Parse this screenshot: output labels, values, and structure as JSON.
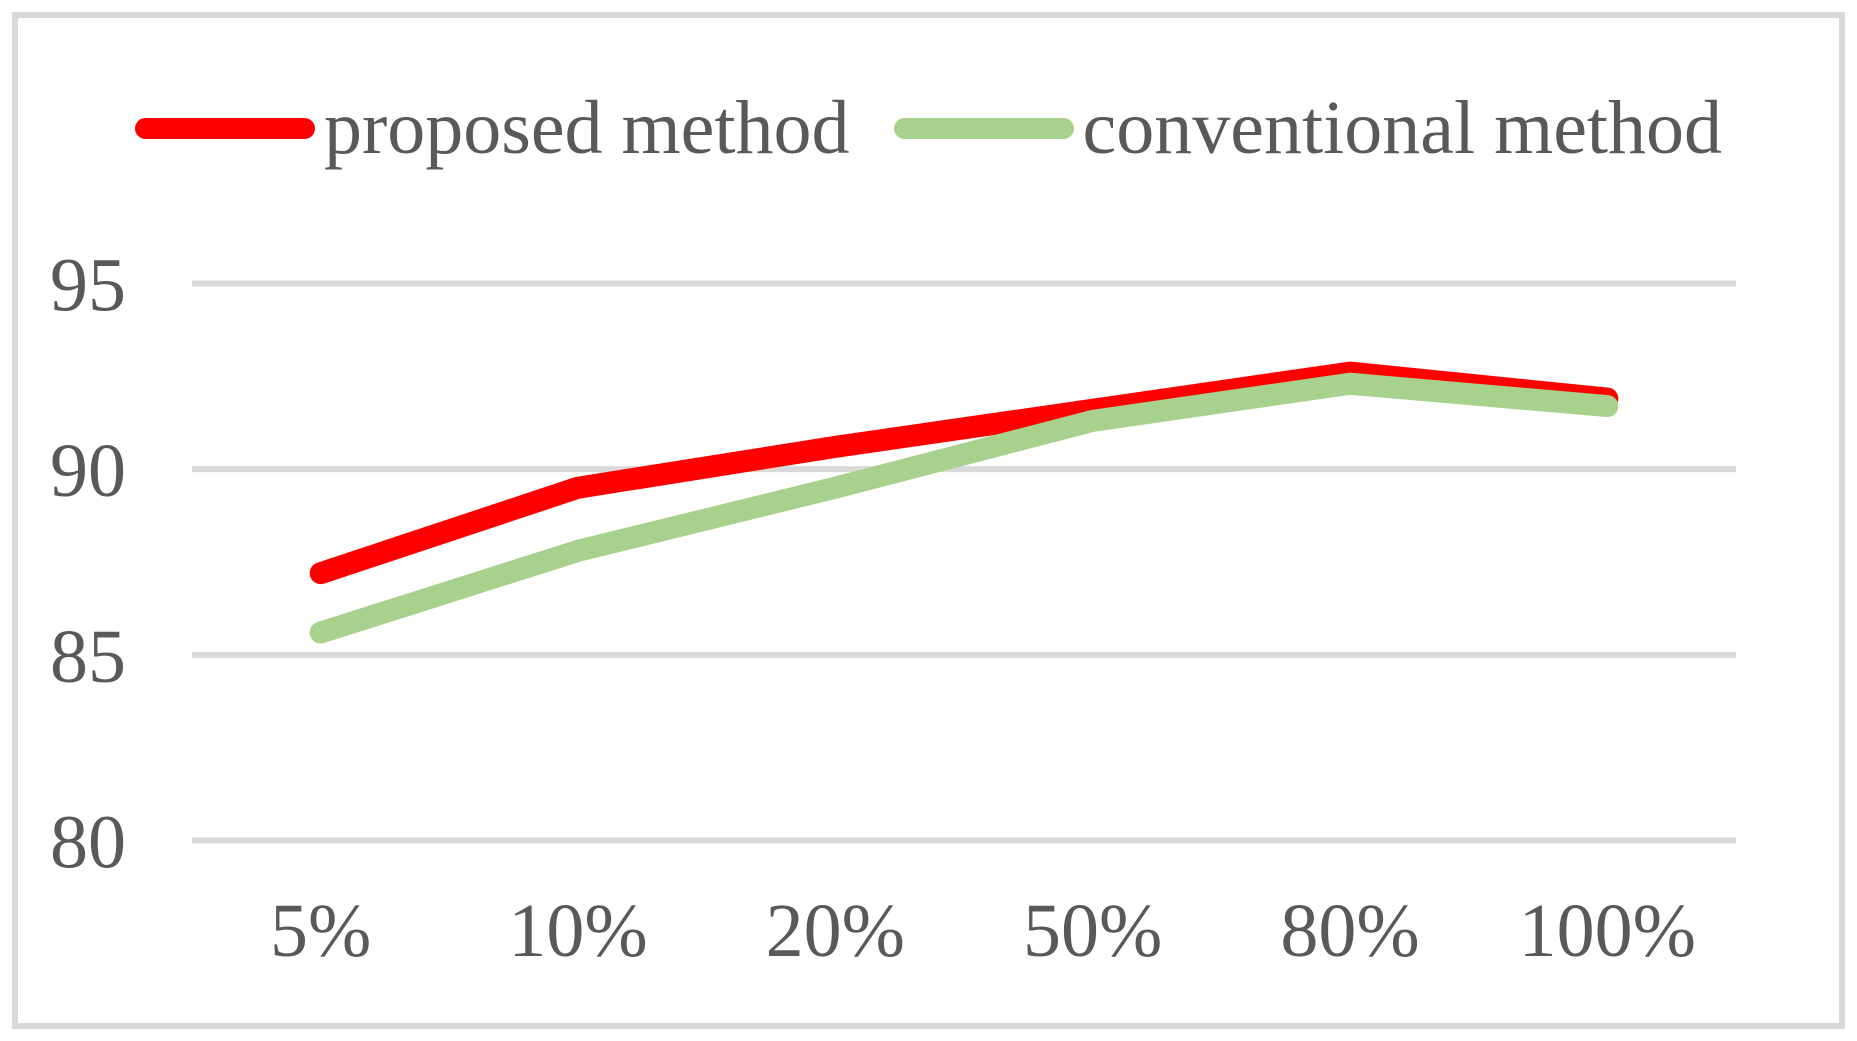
{
  "figure": {
    "background_color": "#ffffff",
    "border_color": "#d9d9d9"
  },
  "legend": {
    "position": "top-center",
    "items": [
      {
        "label": "proposed method",
        "color": "#ff0000"
      },
      {
        "label": "conventional method",
        "color": "#a9d18e"
      }
    ]
  },
  "chart_data": {
    "type": "line",
    "title": "",
    "xlabel": "",
    "ylabel": "",
    "categories": [
      "5%",
      "10%",
      "20%",
      "50%",
      "80%",
      "100%"
    ],
    "series": [
      {
        "name": "proposed method",
        "color": "#ff0000",
        "values": [
          87.2,
          89.5,
          90.6,
          91.6,
          92.6,
          91.9
        ]
      },
      {
        "name": "conventional method",
        "color": "#a9d18e",
        "values": [
          85.6,
          87.8,
          89.5,
          91.3,
          92.3,
          91.7
        ]
      }
    ],
    "yticks": [
      95,
      90,
      85,
      80
    ],
    "ylim": [
      80,
      95
    ],
    "grid": "horizontal",
    "gridline_color": "#d9d9d9",
    "tick_label_color": "#595959",
    "line_width": 22,
    "legend_position": "top"
  }
}
